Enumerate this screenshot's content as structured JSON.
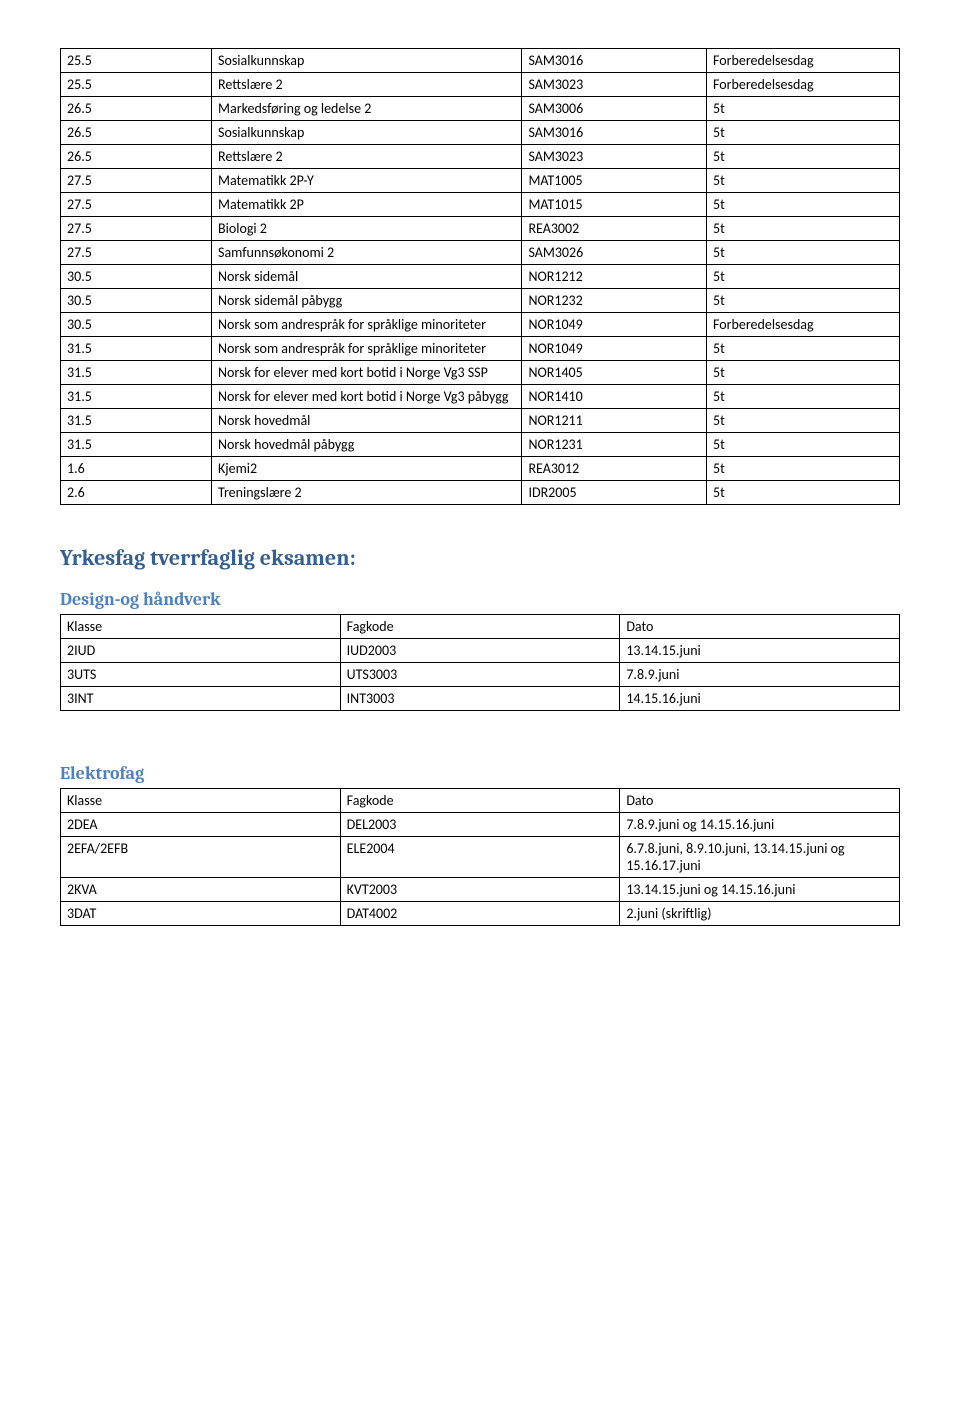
{
  "table1": {
    "rows": [
      [
        "25.5",
        "Sosialkunnskap",
        "SAM3016",
        "Forberedelsesdag"
      ],
      [
        "25.5",
        "Rettslære 2",
        "SAM3023",
        "Forberedelsesdag"
      ],
      [
        "26.5",
        "Markedsføring og ledelse 2",
        "SAM3006",
        "5t"
      ],
      [
        "26.5",
        "Sosialkunnskap",
        "SAM3016",
        "5t"
      ],
      [
        "26.5",
        "Rettslære 2",
        "SAM3023",
        "5t"
      ],
      [
        "27.5",
        "Matematikk 2P-Y",
        "MAT1005",
        "5t"
      ],
      [
        "27.5",
        "Matematikk 2P",
        "MAT1015",
        "5t"
      ],
      [
        "27.5",
        "Biologi 2",
        "REA3002",
        "5t"
      ],
      [
        "27.5",
        "Samfunnsøkonomi 2",
        "SAM3026",
        "5t"
      ],
      [
        "30.5",
        "Norsk sidemål",
        "NOR1212",
        "5t"
      ],
      [
        "30.5",
        "Norsk sidemål påbygg",
        "NOR1232",
        "5t"
      ],
      [
        "30.5",
        "Norsk som andrespråk for språklige minoriteter",
        "NOR1049",
        "Forberedelsesdag"
      ],
      [
        "31.5",
        "Norsk som andrespråk for språklige minoriteter",
        "NOR1049",
        "5t"
      ],
      [
        "31.5",
        "Norsk for elever med kort botid i Norge Vg3 SSP",
        "NOR1405",
        "5t"
      ],
      [
        "31.5",
        "Norsk for elever med kort botid i Norge Vg3 påbygg",
        "NOR1410",
        "5t"
      ],
      [
        "31.5",
        "Norsk hovedmål",
        "NOR1211",
        "5t"
      ],
      [
        "31.5",
        "Norsk hovedmål påbygg",
        "NOR1231",
        "5t"
      ],
      [
        "1.6",
        "Kjemi2",
        "REA3012",
        "5t"
      ],
      [
        "2.6",
        "Treningslære 2",
        "IDR2005",
        "5t"
      ]
    ]
  },
  "section_title": "Yrkesfag tverrfaglig eksamen:",
  "design": {
    "title": "Design-og håndverk",
    "header": [
      "Klasse",
      "Fagkode",
      "Dato"
    ],
    "rows": [
      [
        "2IUD",
        "IUD2003",
        "13.14.15.juni"
      ],
      [
        "3UTS",
        "UTS3003",
        "7.8.9.juni"
      ],
      [
        "3INT",
        "INT3003",
        "14.15.16.juni"
      ]
    ]
  },
  "elektro": {
    "title": "Elektrofag",
    "header": [
      "Klasse",
      "Fagkode",
      "Dato"
    ],
    "rows": [
      [
        "2DEA",
        "DEL2003",
        "7.8.9.juni og 14.15.16.juni"
      ],
      [
        "2EFA/2EFB",
        "ELE2004",
        "6.7.8.juni, 8.9.10.juni, 13.14.15.juni og 15.16.17.juni"
      ],
      [
        "2KVA",
        "KVT2003",
        "13.14.15.juni og 14.15.16.juni"
      ],
      [
        "3DAT",
        "DAT4002",
        "2.juni (skriftlig)"
      ]
    ]
  }
}
